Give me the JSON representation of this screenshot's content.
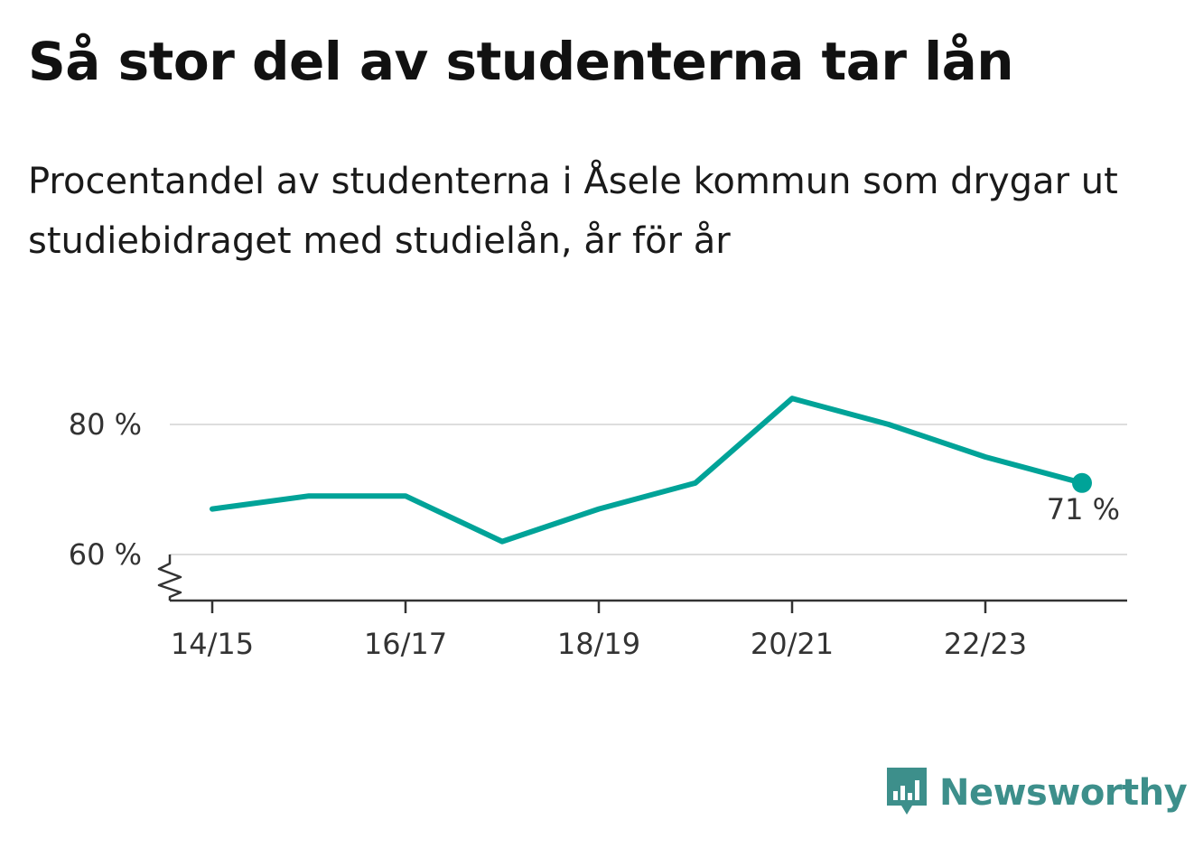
{
  "title": "Så stor del av studenterna tar lån",
  "subtitle": "Procentandel av studenterna i Åsele kommun som drygar ut studiebidraget med studielån, år för år",
  "brand": {
    "name": "Newsworthy"
  },
  "colors": {
    "line": "#00a398",
    "grid": "#dddddd",
    "axis": "#333333",
    "brand": "#3d8f8b"
  },
  "chart_data": {
    "type": "line",
    "title": "Så stor del av studenterna tar lån",
    "subtitle": "Procentandel av studenterna i Åsele kommun som drygar ut studiebidraget med studielån, år för år",
    "categories": [
      "14/15",
      "15/16",
      "16/17",
      "17/18",
      "18/19",
      "19/20",
      "20/21",
      "21/22",
      "22/23",
      "23/24"
    ],
    "x_tick_labels": [
      "14/15",
      "16/17",
      "18/19",
      "20/21",
      "22/23"
    ],
    "y_ticks": [
      60,
      80
    ],
    "y_tick_labels": [
      "60 %",
      "80 %"
    ],
    "ylim": [
      53,
      88
    ],
    "y_axis_break": true,
    "grid": true,
    "series": [
      {
        "values": [
          67,
          69,
          69,
          62,
          67,
          71,
          84,
          80,
          75,
          71
        ]
      }
    ],
    "end_label": "71 %"
  }
}
